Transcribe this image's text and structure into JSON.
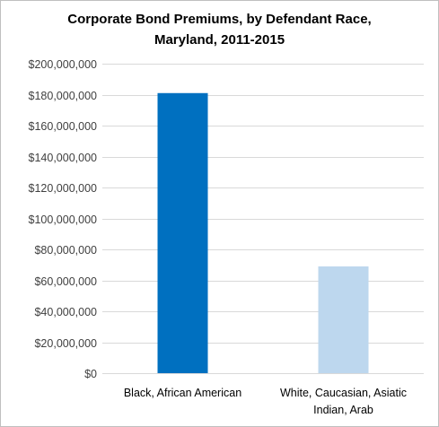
{
  "chart_data": {
    "type": "bar",
    "title_lines": [
      "Corporate Bond Premiums, by Defendant Race,",
      "Maryland, 2011-2015"
    ],
    "categories": [
      [
        "Black, African American"
      ],
      [
        "White, Caucasian, Asiatic",
        "Indian, Arab"
      ]
    ],
    "values": [
      181000000,
      69000000
    ],
    "colors": [
      "#0070c0",
      "#bdd7ee"
    ],
    "ylim": [
      0,
      200000000
    ],
    "ytick_step": 20000000,
    "ytick_labels": [
      "$0",
      "$20,000,000",
      "$40,000,000",
      "$60,000,000",
      "$80,000,000",
      "$100,000,000",
      "$120,000,000",
      "$140,000,000",
      "$160,000,000",
      "$180,000,000",
      "$200,000,000"
    ],
    "grid": true,
    "gridline_color": "#d9d9d9",
    "legend": "none"
  }
}
